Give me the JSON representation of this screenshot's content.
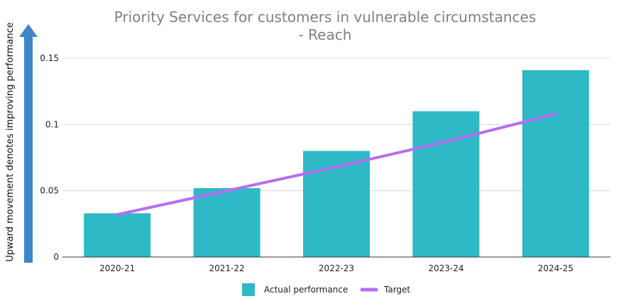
{
  "chart_data": {
    "type": "bar",
    "title": "Priority Services for customers in vulnerable circumstances",
    "subtitle": "- Reach",
    "categories": [
      "2020-21",
      "2021-22",
      "2022-23",
      "2023-24",
      "2024-25"
    ],
    "series": [
      {
        "name": "Actual performance",
        "type": "bar",
        "color": "#2fb8c5",
        "values": [
          0.033,
          0.052,
          0.08,
          0.11,
          0.141
        ]
      },
      {
        "name": "Target",
        "type": "line",
        "color": "#b56ef2",
        "values": [
          0.032,
          0.05,
          0.068,
          0.087,
          0.108
        ]
      }
    ],
    "ylabel": "Upward movement denotes improving performance",
    "xlabel": "",
    "ylim": [
      0,
      0.15
    ],
    "yticks": [
      "0",
      "0.05",
      "0.1",
      "0.15"
    ],
    "ytick_values": [
      0,
      0.05,
      0.1,
      0.15
    ],
    "grid": true,
    "legend_position": "bottom",
    "axis_arrow_color": "#3f86c6"
  }
}
